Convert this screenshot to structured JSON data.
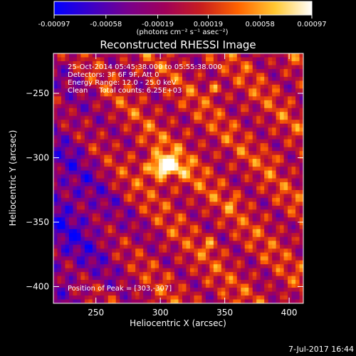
{
  "colorbar": {
    "tick_labels": [
      "-0.00097",
      "-0.00058",
      "-0.00019",
      "0.00019",
      "0.00058",
      "0.00097"
    ],
    "tick_values": [
      -0.00097,
      -0.00058,
      -0.00019,
      0.00019,
      0.00058,
      0.00097
    ],
    "range": [
      -0.00097,
      0.00097
    ],
    "units": "(photons cm⁻² s⁻¹ asec⁻²)",
    "colors": [
      "#0000ff",
      "#3c00c8",
      "#78008c",
      "#a0005a",
      "#c81e1e",
      "#ff6400",
      "#ffc832",
      "#ffffff"
    ]
  },
  "annotations": {
    "time_range": "25-Oct-2014 05:45:38.000 to 05:55:38.000",
    "detectors": "Detectors: 3F 6F 9F, Att 0",
    "energy_range": "Energy Range: 12.0 - 25.0 keV",
    "clean_total": "Clean     Total counts: 6.25E+03",
    "peak_position": "Position of Peak = [303,-307]"
  },
  "footer": {
    "date": "7-Jul-2017 16:44"
  },
  "chart_data": {
    "type": "heatmap",
    "title": "Reconstructed RHESSI Image",
    "xlabel": "Heliocentric X (arcsec)",
    "ylabel": "Heliocentric Y (arcsec)",
    "xlim": [
      217,
      411
    ],
    "ylim": [
      -413,
      -219
    ],
    "x_ticks": [
      250,
      300,
      350,
      400
    ],
    "y_ticks": [
      -250,
      -300,
      -350,
      -400
    ],
    "x_tick_labels": [
      "250",
      "300",
      "350",
      "400"
    ],
    "y_tick_labels": [
      "−250",
      "−300",
      "−350",
      "−400"
    ],
    "value_range": [
      -0.00097,
      0.00097
    ],
    "peak": {
      "x": 303,
      "y": -307,
      "value": 0.00097
    },
    "secondary_sources": [
      {
        "x": 342,
        "y": -247,
        "value": 0.00055
      },
      {
        "x": 339,
        "y": -368,
        "value": 0.0004
      },
      {
        "x": 385,
        "y": -300,
        "value": 0.00035
      },
      {
        "x": 356,
        "y": -335,
        "value": 0.0003
      }
    ],
    "background_mean": 0.00012,
    "grid": false
  }
}
